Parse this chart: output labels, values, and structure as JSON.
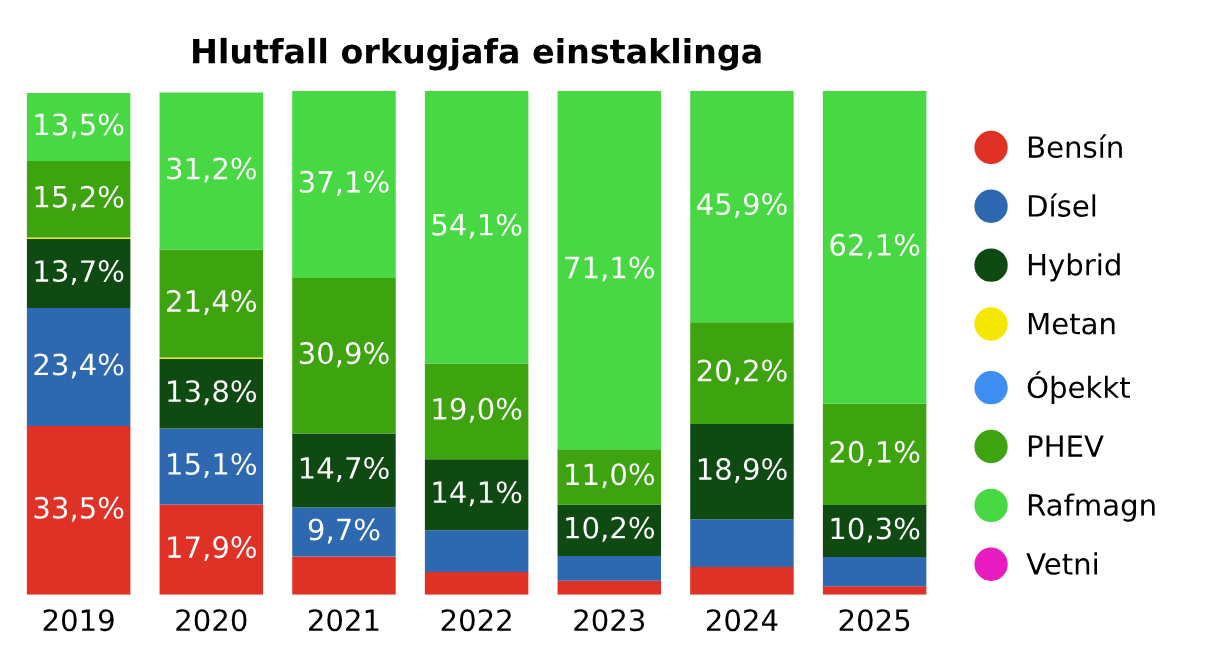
{
  "chart_data": {
    "type": "bar",
    "stacked": true,
    "title": "Hlutfall orkugjafa einstaklinga",
    "categories": [
      "2019",
      "2020",
      "2021",
      "2022",
      "2023",
      "2024",
      "2025"
    ],
    "legend": "right",
    "marker": "circle",
    "grid": false,
    "series": [
      {
        "name": "Bensín",
        "color": "#e03127",
        "values": [
          33.5,
          17.9,
          7.6,
          4.5,
          2.8,
          5.5,
          1.7
        ],
        "value_labels": [
          "33,5%",
          "17,9%",
          null,
          null,
          null,
          null,
          null
        ]
      },
      {
        "name": "Dísel",
        "color": "#2e68b0",
        "values": [
          23.4,
          15.1,
          9.7,
          8.3,
          4.9,
          9.5,
          5.8
        ],
        "value_labels": [
          "23,4%",
          "15,1%",
          "9,7%",
          null,
          null,
          null,
          null
        ]
      },
      {
        "name": "Hybrid",
        "color": "#0f4a12",
        "values": [
          13.7,
          13.8,
          14.7,
          14.1,
          10.2,
          18.9,
          10.3
        ],
        "value_labels": [
          "13,7%",
          "13,8%",
          "14,7%",
          "14,1%",
          "10,2%",
          "18,9%",
          "10,3%"
        ]
      },
      {
        "name": "Metan",
        "color": "#f5e800",
        "values": [
          0.3,
          0.3,
          0,
          0,
          0,
          0,
          0
        ],
        "value_labels": [
          null,
          null,
          null,
          null,
          null,
          null,
          null
        ]
      },
      {
        "name": "Óþekkt",
        "color": "#3d8ef0",
        "values": [
          0,
          0,
          0,
          0,
          0,
          0,
          0
        ],
        "value_labels": [
          null,
          null,
          null,
          null,
          null,
          null,
          null
        ]
      },
      {
        "name": "PHEV",
        "color": "#3da30f",
        "values": [
          15.2,
          21.4,
          30.9,
          19.0,
          11.0,
          20.2,
          20.1
        ],
        "value_labels": [
          "15,2%",
          "21,4%",
          "30,9%",
          "19,0%",
          "11,0%",
          "20,2%",
          "20,1%"
        ]
      },
      {
        "name": "Rafmagn",
        "color": "#47d843",
        "values": [
          13.5,
          31.2,
          37.1,
          54.1,
          71.1,
          45.9,
          62.1
        ],
        "value_labels": [
          "13,5%",
          "31,2%",
          "37,1%",
          "54,1%",
          "71,1%",
          "45,9%",
          "62,1%"
        ]
      },
      {
        "name": "Vetni",
        "color": "#e81cc0",
        "values": [
          0,
          0,
          0,
          0,
          0,
          0,
          0
        ],
        "value_labels": [
          null,
          null,
          null,
          null,
          null,
          null,
          null
        ]
      }
    ]
  }
}
